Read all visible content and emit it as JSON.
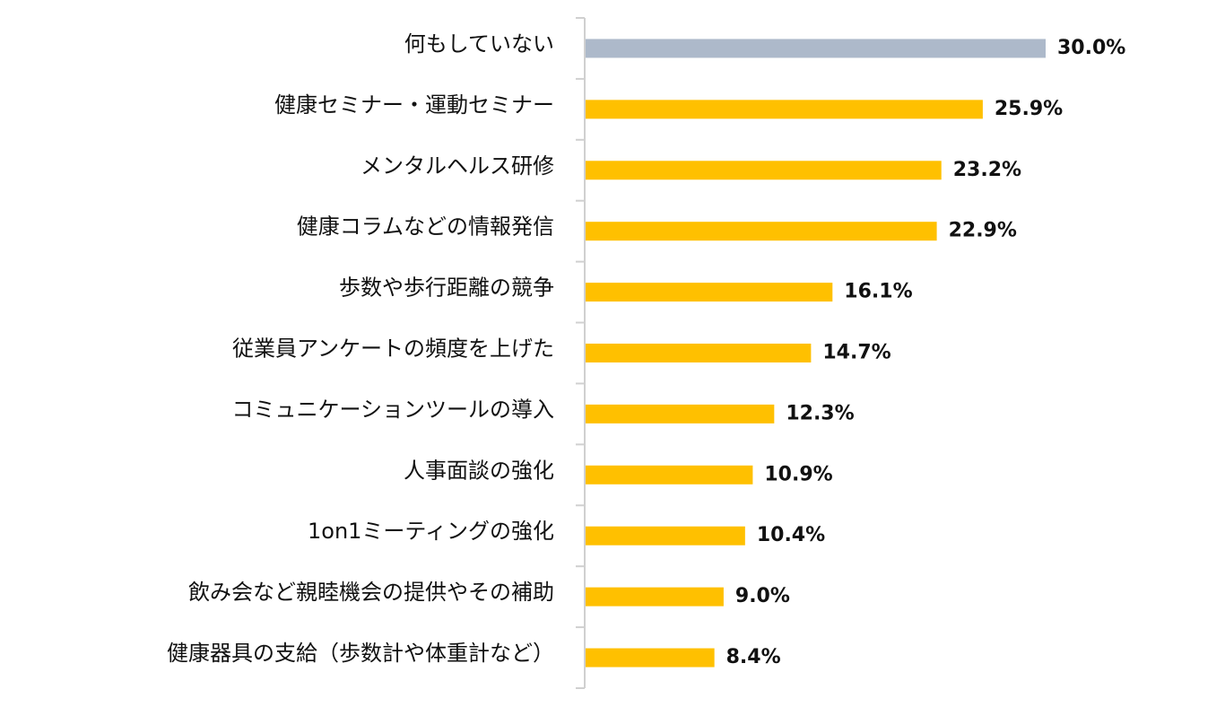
{
  "chart_data": {
    "type": "bar",
    "orientation": "horizontal",
    "title": "",
    "xlabel": "",
    "ylabel": "",
    "xlim": [
      0,
      30
    ],
    "grid": false,
    "legend": "none",
    "value_suffix": "%",
    "categories": [
      "何もしていない",
      "健康セミナー・運動セミナー",
      "メンタルヘルス研修",
      "健康コラムなどの情報発信",
      "歩数や歩行距離の競争",
      "従業員アンケートの頻度を上げた",
      "コミュニケーションツールの導入",
      "人事面談の強化",
      "1on1ミーティングの強化",
      "飲み会など親睦機会の提供やその補助",
      "健康器具の支給（歩数計や体重計など）"
    ],
    "values": [
      30.0,
      25.9,
      23.2,
      22.9,
      16.1,
      14.7,
      12.3,
      10.9,
      10.4,
      9.0,
      8.4
    ],
    "value_labels": [
      "30.0%",
      "25.9%",
      "23.2%",
      "22.9%",
      "16.1%",
      "14.7%",
      "12.3%",
      "10.9%",
      "10.4%",
      "9.0%",
      "8.4%"
    ],
    "bar_colors": [
      "#adb9ca",
      "#ffc000",
      "#ffc000",
      "#ffc000",
      "#ffc000",
      "#ffc000",
      "#ffc000",
      "#ffc000",
      "#ffc000",
      "#ffc000",
      "#ffc000"
    ],
    "axis_color": "#d0d0d0"
  }
}
